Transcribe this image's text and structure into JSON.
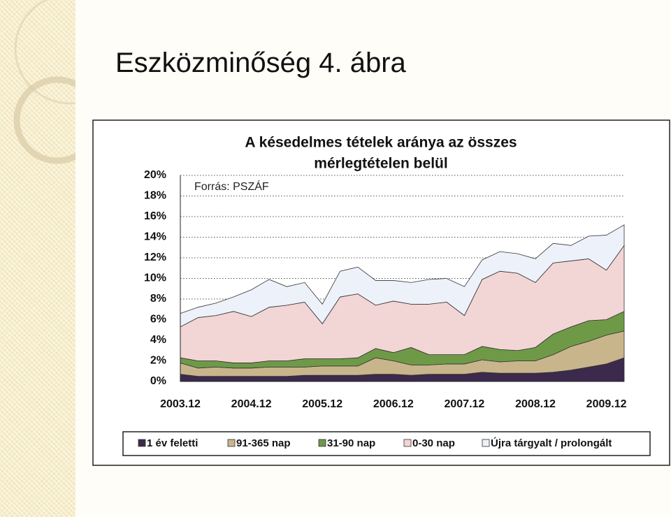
{
  "page_title": "Eszközminőség 4. ábra",
  "chart_data": {
    "type": "stacked_area",
    "title": "A késedelmes tételek aránya az összes mérlegtételen belül",
    "annotation": "Forrás: PSZÁF",
    "categories": [
      "2003.12",
      null,
      null,
      null,
      "2004.12",
      null,
      null,
      null,
      "2005.12",
      null,
      null,
      null,
      "2006.12",
      null,
      null,
      null,
      "2007.12",
      null,
      null,
      null,
      "2008.12",
      null,
      null,
      null,
      "2009.12",
      null
    ],
    "series": [
      {
        "name": "1 év feletti",
        "color": "#3b2a4c",
        "values": [
          0.7,
          0.5,
          0.5,
          0.5,
          0.5,
          0.5,
          0.5,
          0.6,
          0.6,
          0.6,
          0.6,
          0.7,
          0.7,
          0.6,
          0.7,
          0.7,
          0.7,
          0.9,
          0.8,
          0.8,
          0.8,
          0.9,
          1.1,
          1.4,
          1.7,
          2.3
        ]
      },
      {
        "name": "91-365 nap",
        "color": "#c9b58c",
        "values": [
          1.1,
          0.8,
          0.9,
          0.8,
          0.8,
          0.9,
          0.9,
          0.8,
          0.9,
          0.9,
          0.9,
          1.6,
          1.3,
          1.0,
          0.9,
          1.0,
          1.0,
          1.2,
          1.1,
          1.2,
          1.2,
          1.7,
          2.3,
          2.5,
          2.8,
          2.6
        ]
      },
      {
        "name": "31-90 nap",
        "color": "#6e9a48",
        "values": [
          0.5,
          0.7,
          0.6,
          0.5,
          0.5,
          0.6,
          0.6,
          0.8,
          0.7,
          0.7,
          0.8,
          0.9,
          0.8,
          1.7,
          1.0,
          0.9,
          0.9,
          1.3,
          1.2,
          1.0,
          1.3,
          2.0,
          1.9,
          2.0,
          1.5,
          1.9
        ]
      },
      {
        "name": "0-30 nap",
        "color": "#f2d5d5",
        "values": [
          3.0,
          4.2,
          4.4,
          5.0,
          4.5,
          5.2,
          5.4,
          5.5,
          3.4,
          6.0,
          6.2,
          4.2,
          5.0,
          4.2,
          4.9,
          5.1,
          3.8,
          6.5,
          7.6,
          7.5,
          6.3,
          6.9,
          6.4,
          6.0,
          4.8,
          6.4
        ]
      },
      {
        "name": "Újra tárgyalt / prolongált",
        "color": "#edf1fa",
        "values": [
          1.3,
          1.0,
          1.2,
          1.4,
          2.6,
          2.7,
          1.8,
          1.9,
          1.9,
          2.5,
          2.6,
          2.4,
          2.0,
          2.1,
          2.4,
          2.3,
          2.8,
          1.9,
          1.9,
          1.9,
          2.3,
          1.9,
          1.5,
          2.2,
          3.4,
          2.0
        ]
      }
    ],
    "ylim": [
      0,
      20
    ],
    "yticks": [
      {
        "value": 0,
        "label": "0%"
      },
      {
        "value": 2,
        "label": "2%"
      },
      {
        "value": 4,
        "label": "4%"
      },
      {
        "value": 6,
        "label": "6%"
      },
      {
        "value": 8,
        "label": "8%"
      },
      {
        "value": 10,
        "label": "10%"
      },
      {
        "value": 12,
        "label": "12%"
      },
      {
        "value": 14,
        "label": "14%"
      },
      {
        "value": 16,
        "label": "16%"
      },
      {
        "value": 18,
        "label": "18%"
      },
      {
        "value": 20,
        "label": "20%"
      }
    ],
    "grid": true,
    "legend": "bottom"
  }
}
